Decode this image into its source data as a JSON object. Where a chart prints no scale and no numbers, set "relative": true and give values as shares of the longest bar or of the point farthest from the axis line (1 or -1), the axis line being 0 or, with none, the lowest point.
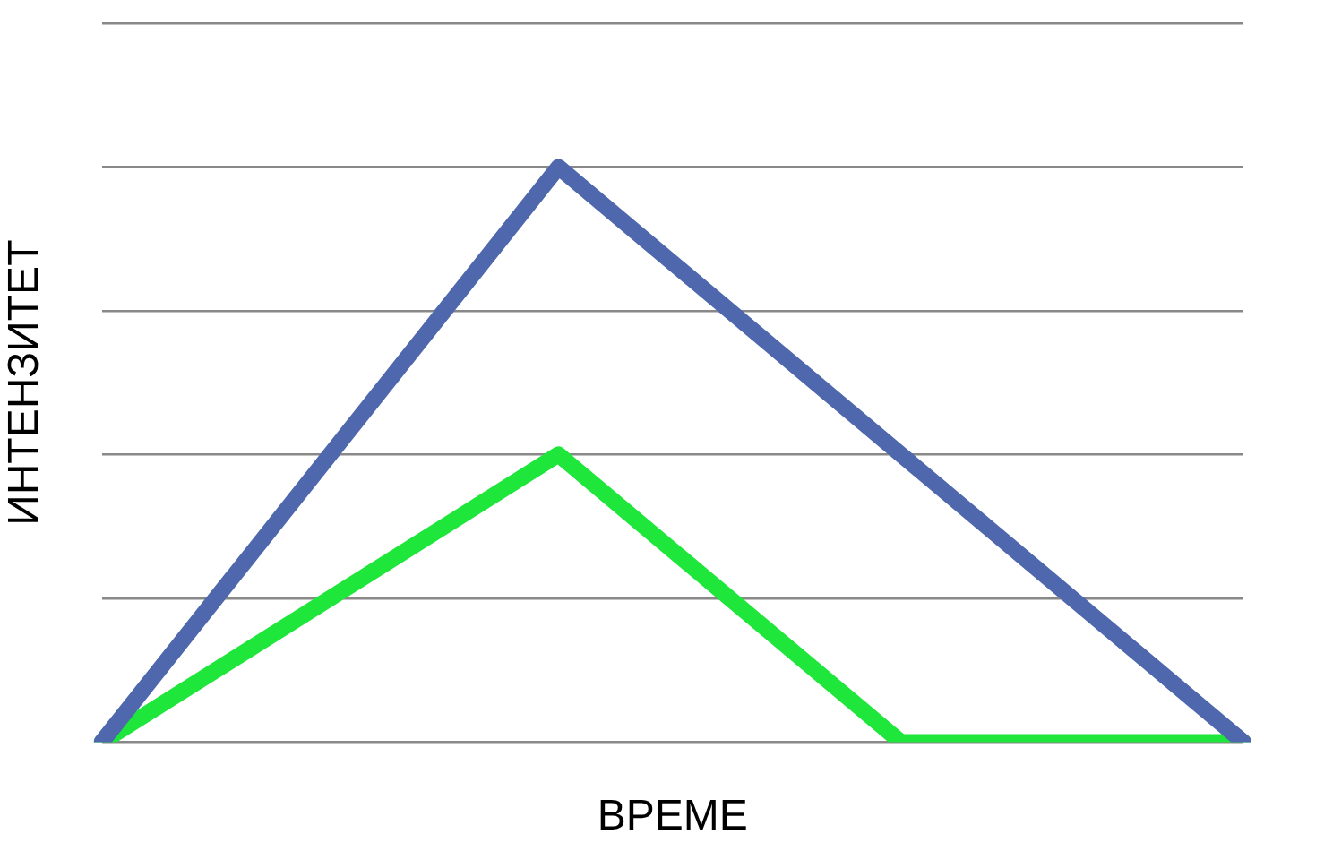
{
  "chart_data": {
    "type": "line",
    "relative": true,
    "xlabel": "ВРЕМЕ",
    "ylabel": "ИНТЕНЗИТЕТ",
    "categories": [
      null,
      null,
      null,
      null,
      null,
      null,
      null,
      null,
      null,
      null,
      null
    ],
    "series": [
      {
        "color": "#4f68ad",
        "values": [
          0,
          null,
          null,
          null,
          1,
          null,
          null,
          null,
          null,
          null,
          0
        ]
      },
      {
        "color": "#1ee63a",
        "values": [
          0,
          null,
          null,
          null,
          0.5,
          null,
          null,
          0,
          null,
          null,
          0
        ]
      }
    ],
    "grid": "y",
    "legend": false,
    "marker": "none",
    "line_style": "solid"
  }
}
